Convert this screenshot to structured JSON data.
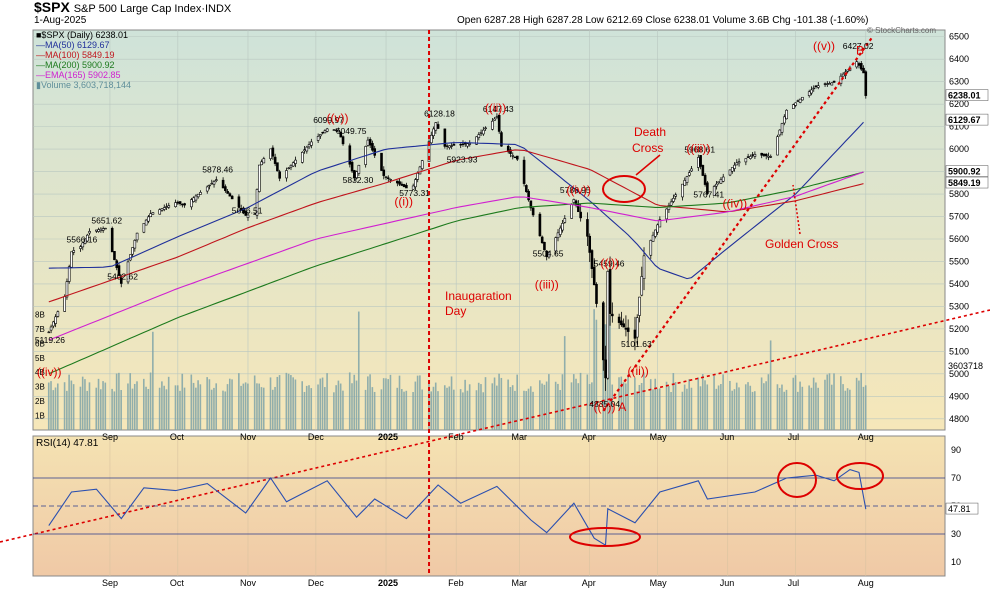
{
  "header": {
    "title": "$SPX",
    "subtitle": "S&P 500 Large Cap Index·INDX",
    "date": "1-Aug-2025",
    "ohlc": "Open 6287.28  High 6287.28  Low 6212.69  Close 6238.01  Volume 3.6B  Chg -101.38 (-1.60%)",
    "watermark": "© StockCharts.com"
  },
  "legend": [
    {
      "text": "■$SPX (Daily) 6238.01",
      "color": "#000000"
    },
    {
      "text": "—MA(50) 6129.67",
      "color": "#1f2f9a"
    },
    {
      "text": "—MA(100) 5849.19",
      "color": "#c0141c"
    },
    {
      "text": "—MA(200) 5900.92",
      "color": "#1d7a1d"
    },
    {
      "text": "—EMA(165) 5902.85",
      "color": "#d020d0"
    },
    {
      "text": "▮Volume 3,603,718,144",
      "color": "#5f8f9a"
    }
  ],
  "price_labels": [
    "6238.01",
    "6129.67",
    "5900.92",
    "5849.19"
  ],
  "volume_label": "3603718",
  "rsi_label": "RSI(14) 47.81",
  "rsi_value_label": "47.81",
  "chart_data": [
    {
      "type": "candlestick",
      "title": "$SPX (Daily)",
      "x_months": [
        "Sep",
        "Oct",
        "Nov",
        "Dec",
        "2025",
        "Feb",
        "Mar",
        "Apr",
        "May",
        "Jun",
        "Jul",
        "Aug"
      ],
      "y_ticks": [
        4800,
        4900,
        5000,
        5100,
        5200,
        5300,
        5400,
        5500,
        5600,
        5700,
        5800,
        5900,
        6000,
        6100,
        6200,
        6300,
        6400,
        6500
      ],
      "ylim": [
        4750,
        6530
      ],
      "close_path_points": [
        [
          "2024-08-05",
          5186
        ],
        [
          "2024-08-12",
          5344
        ],
        [
          "2024-08-15",
          5543
        ],
        [
          "2024-08-19",
          5566
        ],
        [
          "2024-08-23",
          5634
        ],
        [
          "2024-08-30",
          5648
        ],
        [
          "2024-09-06",
          5402
        ],
        [
          "2024-09-13",
          5626
        ],
        [
          "2024-09-19",
          5713
        ],
        [
          "2024-09-30",
          5762
        ],
        [
          "2024-10-04",
          5751
        ],
        [
          "2024-10-18",
          5864
        ],
        [
          "2024-10-31",
          5705
        ],
        [
          "2024-11-04",
          5712
        ],
        [
          "2024-11-06",
          5929
        ],
        [
          "2024-11-11",
          6001
        ],
        [
          "2024-11-15",
          5870
        ],
        [
          "2024-11-29",
          6032
        ],
        [
          "2024-12-06",
          6090
        ],
        [
          "2024-12-11",
          6084
        ],
        [
          "2024-12-18",
          5872
        ],
        [
          "2024-12-24",
          6040
        ],
        [
          "2024-12-31",
          5882
        ],
        [
          "2025-01-10",
          5827
        ],
        [
          "2025-01-13",
          5836
        ],
        [
          "2025-01-23",
          6118
        ],
        [
          "2025-01-27",
          6012
        ],
        [
          "2025-02-07",
          6025
        ],
        [
          "2025-02-19",
          6144
        ],
        [
          "2025-02-21",
          6013
        ],
        [
          "2025-02-28",
          5955
        ],
        [
          "2025-03-06",
          5738
        ],
        [
          "2025-03-13",
          5521
        ],
        [
          "2025-03-25",
          5776
        ],
        [
          "2025-03-31",
          5612
        ],
        [
          "2025-04-03",
          5396
        ],
        [
          "2025-04-07",
          5062
        ],
        [
          "2025-04-08",
          4982
        ],
        [
          "2025-04-09",
          5456
        ],
        [
          "2025-04-10",
          5268
        ],
        [
          "2025-04-21",
          5158
        ],
        [
          "2025-04-25",
          5525
        ],
        [
          "2025-05-02",
          5686
        ],
        [
          "2025-05-12",
          5844
        ],
        [
          "2025-05-19",
          5963
        ],
        [
          "2025-05-23",
          5802
        ],
        [
          "2025-06-05",
          5939
        ],
        [
          "2025-06-13",
          5977
        ],
        [
          "2025-06-20",
          5967
        ],
        [
          "2025-06-27",
          6173
        ],
        [
          "2025-07-10",
          6280
        ],
        [
          "2025-07-18",
          6297
        ],
        [
          "2025-07-28",
          6389
        ],
        [
          "2025-07-31",
          6339
        ],
        [
          "2025-08-01",
          6238
        ]
      ],
      "price_annotations": [
        {
          "label": "5566.16",
          "x": "2024-08-19",
          "y": 5566
        },
        {
          "label": "5651.62",
          "x": "2024-08-30",
          "y": 5651
        },
        {
          "label": "5402.62",
          "x": "2024-09-06",
          "y": 5402
        },
        {
          "label": "5878.46",
          "x": "2024-10-18",
          "y": 5878
        },
        {
          "label": "5696.51",
          "x": "2024-10-31",
          "y": 5696
        },
        {
          "label": "6099.97",
          "x": "2024-12-06",
          "y": 6099
        },
        {
          "label": "6049.75",
          "x": "2024-12-16",
          "y": 6049
        },
        {
          "label": "5832.30",
          "x": "2024-12-19",
          "y": 5832
        },
        {
          "label": "5773.31",
          "x": "2025-01-13",
          "y": 5773
        },
        {
          "label": "6128.18",
          "x": "2025-01-24",
          "y": 6128
        },
        {
          "label": "5923.93",
          "x": "2025-02-03",
          "y": 5923
        },
        {
          "label": "6147.43",
          "x": "2025-02-19",
          "y": 6147
        },
        {
          "label": "5786.95",
          "x": "2025-03-25",
          "y": 5786
        },
        {
          "label": "5504.65",
          "x": "2025-03-13",
          "y": 5504
        },
        {
          "label": "5459.46",
          "x": "2025-04-09",
          "y": 5459
        },
        {
          "label": "5101.63",
          "x": "2025-04-21",
          "y": 5101
        },
        {
          "label": "4835.04",
          "x": "2025-04-07",
          "y": 4835
        },
        {
          "label": "5968.61",
          "x": "2025-05-19",
          "y": 5968
        },
        {
          "label": "5767.41",
          "x": "2025-05-23",
          "y": 5767
        },
        {
          "label": "6427.02",
          "x": "2025-07-28",
          "y": 6427
        },
        {
          "label": "5119.26",
          "x": "2024-08-05",
          "y": 5119
        }
      ],
      "wave_labels": [
        {
          "label": "((iv))",
          "x": "2024-08-05",
          "y": 4990
        },
        {
          "label": "((v))",
          "x": "2024-12-11",
          "y": 6120
        },
        {
          "label": "((i))",
          "x": "2025-01-10",
          "y": 5750
        },
        {
          "label": "((ii))",
          "x": "2025-02-19",
          "y": 6165
        },
        {
          "label": "((iv))",
          "x": "2025-03-27",
          "y": 5800
        },
        {
          "label": "((iii))",
          "x": "2025-03-13",
          "y": 5380
        },
        {
          "label": "((i))",
          "x": "2025-04-11",
          "y": 5475
        },
        {
          "label": "((ii))",
          "x": "2025-04-23",
          "y": 4995
        },
        {
          "label": "((v)) A",
          "x": "2025-04-08",
          "y": 4835
        },
        {
          "label": "((iii))",
          "x": "2025-05-19",
          "y": 5985
        },
        {
          "label": "((iv))",
          "x": "2025-06-04",
          "y": 5740
        },
        {
          "label": "((v))",
          "x": "2025-07-14",
          "y": 6440
        },
        {
          "label": "B",
          "x": "2025-08-02",
          "y": 6420
        }
      ],
      "annotations": [
        "Inaugaration Day",
        "Death Cross",
        "Golden Cross"
      ],
      "series": [
        {
          "name": "MA(50)",
          "color": "#1f2f9a",
          "last": 6129.67,
          "points": [
            [
              "2024-08-05",
              5470
            ],
            [
              "2024-09-01",
              5475
            ],
            [
              "2024-10-01",
              5610
            ],
            [
              "2024-11-01",
              5740
            ],
            [
              "2024-12-01",
              5900
            ],
            [
              "2025-01-01",
              6000
            ],
            [
              "2025-02-01",
              6030
            ],
            [
              "2025-03-01",
              6020
            ],
            [
              "2025-04-01",
              5770
            ],
            [
              "2025-04-20",
              5600
            ],
            [
              "2025-05-01",
              5470
            ],
            [
              "2025-05-15",
              5420
            ],
            [
              "2025-06-01",
              5560
            ],
            [
              "2025-07-01",
              5800
            ],
            [
              "2025-08-01",
              6130
            ]
          ]
        },
        {
          "name": "MA(100)",
          "color": "#c0141c",
          "last": 5849.19,
          "points": [
            [
              "2024-08-05",
              5320
            ],
            [
              "2024-10-01",
              5520
            ],
            [
              "2024-11-01",
              5650
            ],
            [
              "2024-12-01",
              5760
            ],
            [
              "2025-01-01",
              5850
            ],
            [
              "2025-02-01",
              5950
            ],
            [
              "2025-03-01",
              6000
            ],
            [
              "2025-04-01",
              5910
            ],
            [
              "2025-05-01",
              5750
            ],
            [
              "2025-06-01",
              5720
            ],
            [
              "2025-07-01",
              5770
            ],
            [
              "2025-08-01",
              5849
            ]
          ]
        },
        {
          "name": "MA(200)",
          "color": "#1d7a1d",
          "last": 5900.92,
          "points": [
            [
              "2024-08-05",
              5000
            ],
            [
              "2024-10-01",
              5250
            ],
            [
              "2024-12-01",
              5480
            ],
            [
              "2025-02-01",
              5680
            ],
            [
              "2025-03-01",
              5740
            ],
            [
              "2025-04-01",
              5760
            ],
            [
              "2025-05-01",
              5740
            ],
            [
              "2025-06-01",
              5760
            ],
            [
              "2025-07-01",
              5820
            ],
            [
              "2025-08-01",
              5900
            ]
          ]
        },
        {
          "name": "EMA(165)",
          "color": "#d020d0",
          "last": 5902.85,
          "points": [
            [
              "2024-08-05",
              5150
            ],
            [
              "2024-10-01",
              5380
            ],
            [
              "2024-12-01",
              5600
            ],
            [
              "2025-02-01",
              5740
            ],
            [
              "2025-03-01",
              5790
            ],
            [
              "2025-04-01",
              5740
            ],
            [
              "2025-05-01",
              5680
            ],
            [
              "2025-06-01",
              5720
            ],
            [
              "2025-07-01",
              5790
            ],
            [
              "2025-08-01",
              5902
            ]
          ]
        }
      ],
      "trendlines": [
        {
          "name": "uptrend",
          "from": [
            "2025-04-07",
            4835
          ],
          "to": [
            "2025-08-04",
            6500
          ],
          "color": "#dd0000",
          "style": "dotted"
        }
      ],
      "vertical_markers": [
        {
          "x": "2025-01-20",
          "label": "Inaugaration Day",
          "color": "#dd0000"
        }
      ]
    },
    {
      "type": "bar",
      "title": "Volume",
      "y_ticks_label": [
        "1B",
        "2B",
        "3B",
        "4B",
        "5B",
        "6B",
        "7B",
        "8B"
      ],
      "ylim": [
        0,
        10
      ],
      "unit": "billion shares",
      "last": 3.6
    },
    {
      "type": "line",
      "title": "RSI(14)",
      "y_ticks": [
        10,
        30,
        50,
        70,
        90
      ],
      "ylim": [
        0,
        100
      ],
      "overbought": 70,
      "oversold": 30,
      "mid": 50,
      "last": 47.81,
      "points": [
        [
          "2024-08-05",
          36
        ],
        [
          "2024-08-15",
          60
        ],
        [
          "2024-08-26",
          62
        ],
        [
          "2024-09-06",
          41
        ],
        [
          "2024-09-16",
          63
        ],
        [
          "2024-09-30",
          61
        ],
        [
          "2024-10-14",
          66
        ],
        [
          "2024-10-31",
          45
        ],
        [
          "2024-11-11",
          70
        ],
        [
          "2024-11-18",
          53
        ],
        [
          "2024-12-06",
          68
        ],
        [
          "2024-12-19",
          42
        ],
        [
          "2024-12-27",
          55
        ],
        [
          "2025-01-10",
          41
        ],
        [
          "2025-01-24",
          65
        ],
        [
          "2025-02-03",
          52
        ],
        [
          "2025-02-19",
          64
        ],
        [
          "2025-03-06",
          40
        ],
        [
          "2025-03-13",
          31
        ],
        [
          "2025-03-25",
          52
        ],
        [
          "2025-04-03",
          27
        ],
        [
          "2025-04-08",
          22
        ],
        [
          "2025-04-09",
          48
        ],
        [
          "2025-04-21",
          38
        ],
        [
          "2025-05-02",
          60
        ],
        [
          "2025-05-19",
          68
        ],
        [
          "2025-05-23",
          55
        ],
        [
          "2025-06-13",
          60
        ],
        [
          "2025-06-27",
          70
        ],
        [
          "2025-07-10",
          72
        ],
        [
          "2025-07-18",
          68
        ],
        [
          "2025-07-25",
          76
        ],
        [
          "2025-07-29",
          74
        ],
        [
          "2025-08-01",
          47.81
        ]
      ],
      "circled_regions": [
        "2025-04-08 oversold",
        "2025-07-03 overbought",
        "2025-07-28 overbought"
      ]
    }
  ]
}
